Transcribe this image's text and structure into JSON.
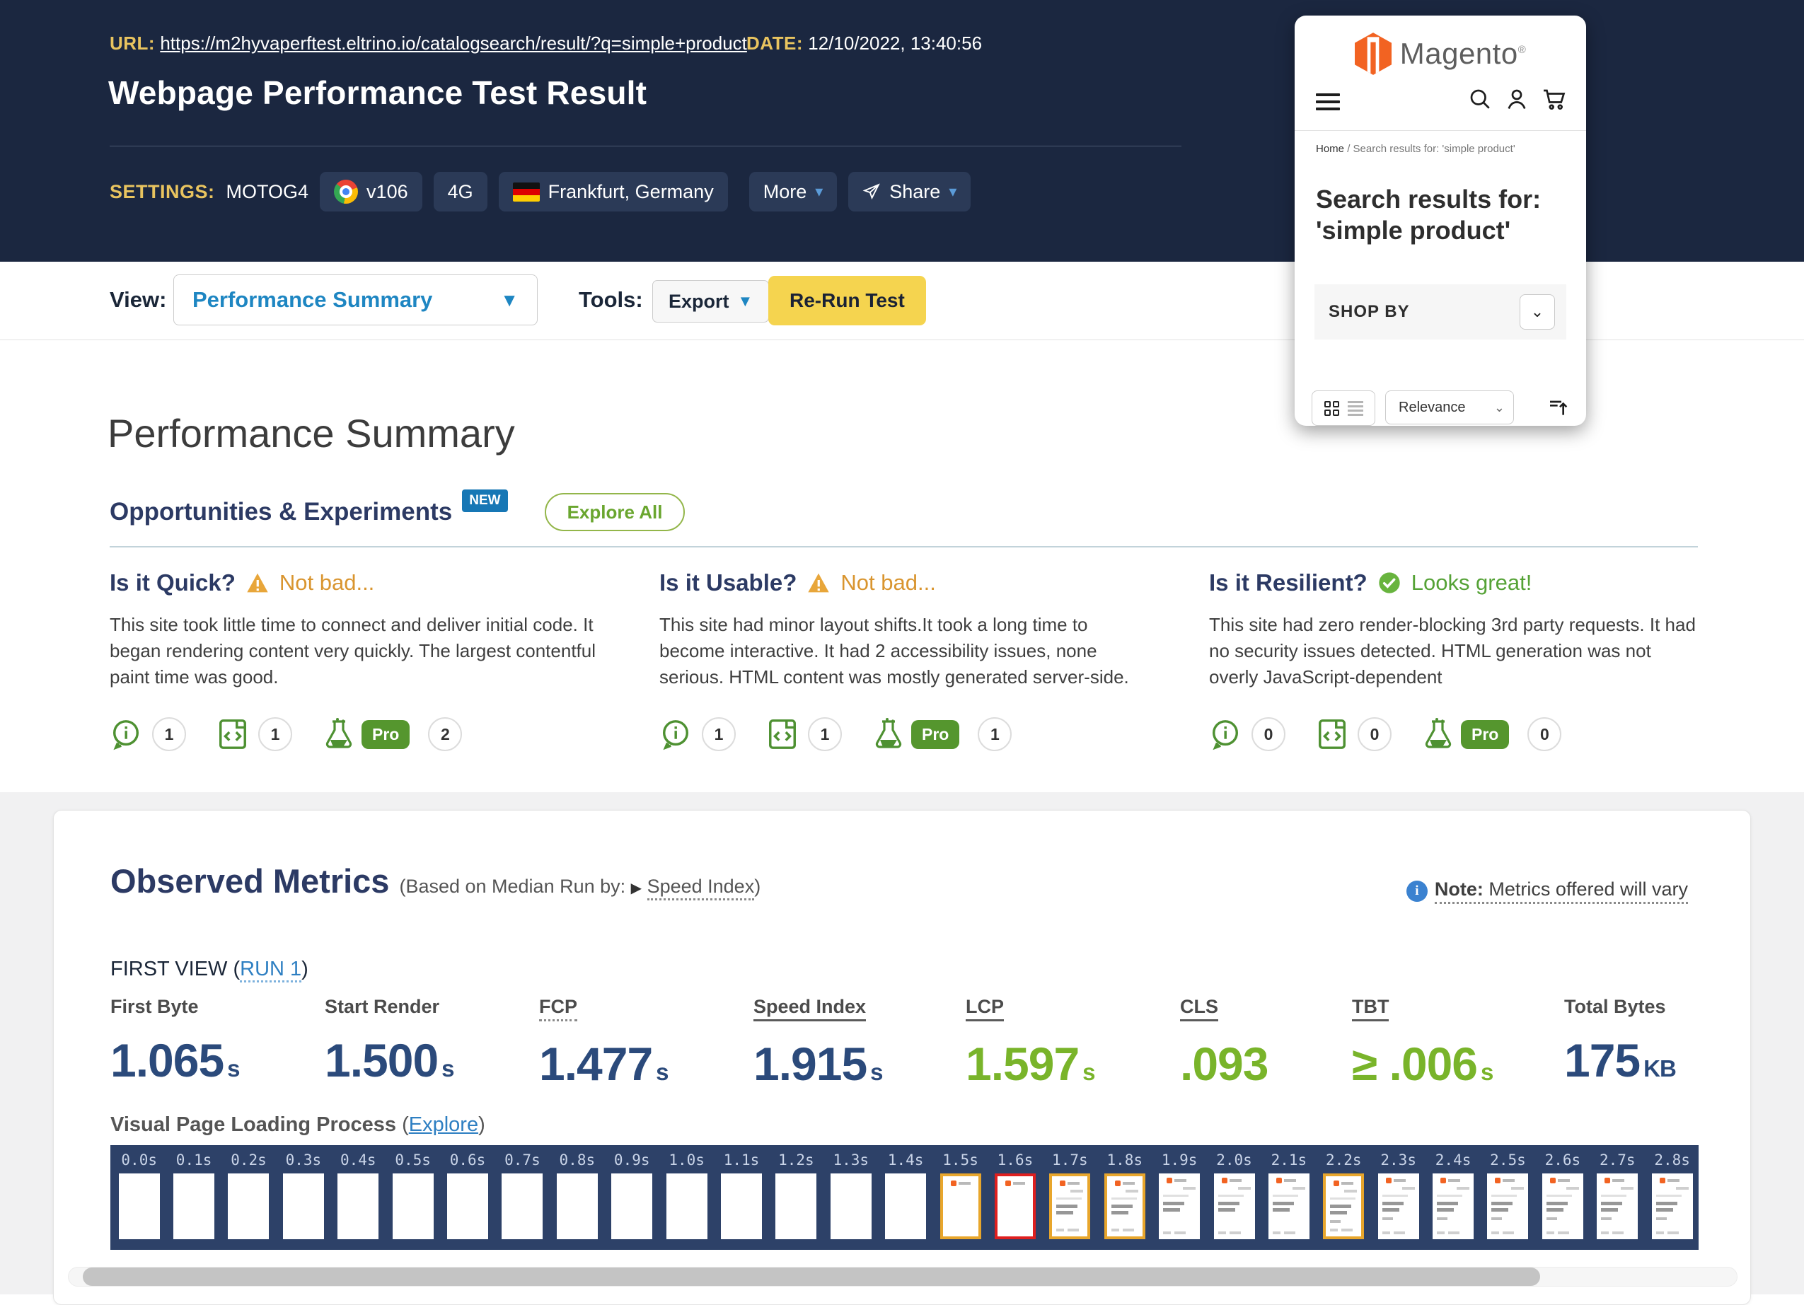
{
  "colors": {
    "header_bg": "#1b2740",
    "gold_label": "#e9c45f",
    "link_blue": "#2e7fc2",
    "accent_blue": "#1e86c2",
    "navy_heading": "#2c3a64",
    "metric_navy": "#2b4a7b",
    "metric_green": "#79b42a",
    "warning_orange": "#e8a63a",
    "success_green": "#68b43e",
    "rerun_yellow": "#f5d44f",
    "brand_orange": "#f26322",
    "filmstrip_bg": "#2d4168",
    "frame_orange": "#e8a62c",
    "frame_red": "#df1f1f"
  },
  "header": {
    "url_label": "URL:",
    "url": "https://m2hyvaperftest.eltrino.io/catalogsearch/result/?q=simple+product",
    "date_label": "DATE:",
    "date": "12/10/2022, 13:40:56",
    "title": "Webpage Performance Test Result",
    "settings_label": "SETTINGS:",
    "device": "MOTOG4",
    "browser_version": "v106",
    "network": "4G",
    "location": "Frankfurt, Germany",
    "more_label": "More",
    "share_label": "Share"
  },
  "toolbar": {
    "view_label": "View:",
    "view_value": "Performance Summary",
    "tools_label": "Tools:",
    "export_label": "Export",
    "rerun_label": "Re-Run Test"
  },
  "preview": {
    "brand": "Magento",
    "brand_mark": "®",
    "breadcrumb_home": "Home",
    "breadcrumb_sep": "/",
    "breadcrumb_current": "Search results for: 'simple product'",
    "heading": "Search results for: 'simple product'",
    "shop_by": "SHOP BY",
    "sort_value": "Relevance"
  },
  "summary": {
    "title": "Performance Summary",
    "opportunities_title": "Opportunities & Experiments",
    "new_badge": "NEW",
    "explore_all": "Explore All",
    "pro_label": "Pro",
    "columns": [
      {
        "title": "Is it Quick?",
        "status": "Not bad...",
        "status_type": "warning",
        "text": "This site took little time to connect and deliver initial code. It began rendering content very quickly. The largest contentful paint time was good.",
        "counts": [
          "1",
          "1",
          "2"
        ]
      },
      {
        "title": "Is it Usable?",
        "status": "Not bad...",
        "status_type": "warning",
        "text": "This site had minor layout shifts.It took a long time to become interactive. It had 2 accessibility issues, none serious. HTML content was mostly generated server-side.",
        "counts": [
          "1",
          "1",
          "1"
        ]
      },
      {
        "title": "Is it Resilient?",
        "status": "Looks great!",
        "status_type": "success",
        "text": "This site had zero render-blocking 3rd party requests. It had no security issues detected. HTML generation was not overly JavaScript-dependent",
        "counts": [
          "0",
          "0",
          "0"
        ]
      }
    ]
  },
  "observed": {
    "title": "Observed Metrics",
    "based_prefix": "(Based on Median Run by:",
    "based_link": "Speed Index",
    "based_suffix": ")",
    "note_bold": "Note:",
    "note_text": "Metrics offered will vary",
    "first_view_prefix": "FIRST VIEW (",
    "run_link": "RUN 1",
    "first_view_suffix": ")",
    "metrics": [
      {
        "label": "First Byte",
        "value": "1.065",
        "unit": "s",
        "color": "navy",
        "underline": "none"
      },
      {
        "label": "Start Render",
        "value": "1.500",
        "unit": "s",
        "color": "navy",
        "underline": "none"
      },
      {
        "label": "FCP",
        "value": "1.477",
        "unit": "s",
        "color": "navy",
        "underline": "dotted"
      },
      {
        "label": "Speed Index",
        "value": "1.915",
        "unit": "s",
        "color": "navy",
        "underline": "solid"
      },
      {
        "label": "LCP",
        "value": "1.597",
        "unit": "s",
        "color": "green",
        "underline": "solid"
      },
      {
        "label": "CLS",
        "value": ".093",
        "unit": "",
        "color": "green",
        "underline": "solid"
      },
      {
        "label": "TBT",
        "value": "≥ .006",
        "unit": "s",
        "color": "green",
        "underline": "solid"
      },
      {
        "label": "Total Bytes",
        "value": "175",
        "unit": "KB",
        "color": "navy",
        "underline": "none"
      }
    ],
    "visual_label": "Visual Page Loading Process",
    "explore_link": "Explore"
  },
  "filmstrip": {
    "frames": [
      {
        "t": "0.0s",
        "state": "blank",
        "border": "none"
      },
      {
        "t": "0.1s",
        "state": "blank",
        "border": "none"
      },
      {
        "t": "0.2s",
        "state": "blank",
        "border": "none"
      },
      {
        "t": "0.3s",
        "state": "blank",
        "border": "none"
      },
      {
        "t": "0.4s",
        "state": "blank",
        "border": "none"
      },
      {
        "t": "0.5s",
        "state": "blank",
        "border": "none"
      },
      {
        "t": "0.6s",
        "state": "blank",
        "border": "none"
      },
      {
        "t": "0.7s",
        "state": "blank",
        "border": "none"
      },
      {
        "t": "0.8s",
        "state": "blank",
        "border": "none"
      },
      {
        "t": "0.9s",
        "state": "blank",
        "border": "none"
      },
      {
        "t": "1.0s",
        "state": "blank",
        "border": "none"
      },
      {
        "t": "1.1s",
        "state": "blank",
        "border": "none"
      },
      {
        "t": "1.2s",
        "state": "blank",
        "border": "none"
      },
      {
        "t": "1.3s",
        "state": "blank",
        "border": "none"
      },
      {
        "t": "1.4s",
        "state": "blank",
        "border": "none"
      },
      {
        "t": "1.5s",
        "state": "logo",
        "border": "orange"
      },
      {
        "t": "1.6s",
        "state": "logo",
        "border": "red"
      },
      {
        "t": "1.7s",
        "state": "full",
        "border": "orange"
      },
      {
        "t": "1.8s",
        "state": "full",
        "border": "orange"
      },
      {
        "t": "1.9s",
        "state": "full",
        "border": "none"
      },
      {
        "t": "2.0s",
        "state": "full",
        "border": "none"
      },
      {
        "t": "2.1s",
        "state": "full",
        "border": "none"
      },
      {
        "t": "2.2s",
        "state": "full2",
        "border": "orange"
      },
      {
        "t": "2.3s",
        "state": "full2",
        "border": "none"
      },
      {
        "t": "2.4s",
        "state": "full2",
        "border": "none"
      },
      {
        "t": "2.5s",
        "state": "full2",
        "border": "none"
      },
      {
        "t": "2.6s",
        "state": "full2",
        "border": "none"
      },
      {
        "t": "2.7s",
        "state": "full2",
        "border": "none"
      },
      {
        "t": "2.8s",
        "state": "full2",
        "border": "none"
      }
    ]
  }
}
